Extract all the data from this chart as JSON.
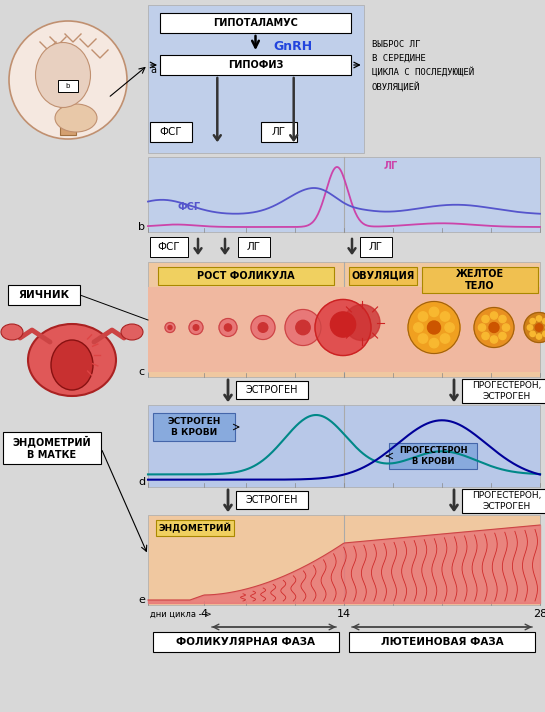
{
  "bg_color": "#d8d8d8",
  "panel_top_bg": "#c0cfea",
  "panel_b_bg": "#c0cfea",
  "panel_c_bg": "#f0c8a0",
  "panel_d_bg": "#b8c8e8",
  "panel_e_bg": "#f0c8a0",
  "title_hypo": "ГИПОТАЛАМУС",
  "title_gnrh": "GnRH",
  "title_gipofiz": "ГИПОФИЗ",
  "label_fsg": "ФСГ",
  "label_lg": "ЛГ",
  "label_a": "a",
  "label_b": "b",
  "label_c": "c",
  "label_d": "d",
  "label_e": "e",
  "right_text": "ВЫБРОС ЛГ\nВ СЕРЕДИНЕ\nЦИКЛА С ПОСЛЕДУЮЩЕЙ\nОВУЛЯЦИЕЙ",
  "ovary_label": "ЯИЧНИК",
  "endometrium_label": "ЭНДОМЕТРИЙ\nВ МАТКЕ",
  "rost_follikula": "РОСТ ФОЛИКУЛА",
  "ovulyaciya": "ОВУЛЯЦИЯ",
  "zheltoe_telo": "ЖЕЛТОЕ\nТЕЛО",
  "estrogen": "ЭСТРОГЕН",
  "progesteron_estrogen": "ПРОГЕСТЕРОН,\nЭСТРОГЕН",
  "estrogen_v_krovi": "ЭСТРОГЕН\nВ КРОВИ",
  "progesteron_v_krovi": "ПРОГЕСТЕРОН\nВ КРОВИ",
  "endometry": "ЭНДОМЕТРИЙ",
  "dni_cikla": "дни цикла -->",
  "day4": "4",
  "day14": "14",
  "day28": "28",
  "follicular_phase": "ФОЛИКУЛЯРНАЯ ФАЗА",
  "luteal_phase": "ЛЮТЕИНОВАЯ ФАЗА",
  "lc_color": "#cc44aa",
  "fsh_color": "#5555cc",
  "est_color": "#008888",
  "prog_color": "#000099"
}
